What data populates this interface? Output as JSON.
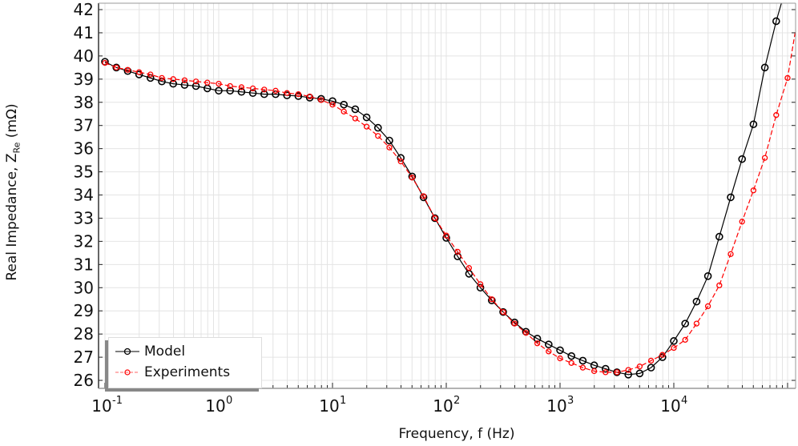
{
  "chart_data": {
    "type": "line",
    "title": "",
    "xlabel": "Frequency, f (Hz)",
    "ylabel": "Real Impedance, Z_Re (mΩ)",
    "ylabel_main": "Real Impedance, Z",
    "ylabel_sub": "Re",
    "ylabel_unit": " (mΩ)",
    "xscale": "log",
    "xlim": [
      0.09,
      140000
    ],
    "ylim": [
      25.6,
      42.2
    ],
    "grid": true,
    "legend_position": "lower left",
    "x_ticks": [
      "10^-1",
      "10^0",
      "10^1",
      "10^2",
      "10^3",
      "10^4"
    ],
    "y_ticks": [
      26,
      27,
      28,
      29,
      30,
      31,
      32,
      33,
      34,
      35,
      36,
      37,
      38,
      39,
      40,
      41,
      42
    ],
    "x_start_exp": -1,
    "points_per_decade": 10,
    "series": [
      {
        "name": "Model",
        "color": "#000000",
        "marker": "circle",
        "linestyle": "solid",
        "values": [
          39.75,
          39.5,
          39.35,
          39.2,
          39.05,
          38.9,
          38.8,
          38.75,
          38.7,
          38.6,
          38.5,
          38.5,
          38.45,
          38.4,
          38.35,
          38.35,
          38.3,
          38.27,
          38.2,
          38.15,
          38.05,
          37.9,
          37.7,
          37.35,
          36.9,
          36.35,
          35.6,
          34.8,
          33.9,
          33.0,
          32.15,
          31.35,
          30.6,
          30.0,
          29.45,
          28.95,
          28.5,
          28.1,
          27.8,
          27.55,
          27.3,
          27.05,
          26.85,
          26.65,
          26.5,
          26.35,
          26.25,
          26.3,
          26.55,
          27.0,
          27.7,
          28.45,
          29.4,
          30.5,
          32.2,
          33.9,
          35.55,
          37.05,
          39.5,
          41.5,
          43.2
        ]
      },
      {
        "name": "Experiments",
        "color": "#ff0000",
        "marker": "diamond",
        "linestyle": "dashed",
        "values": [
          39.7,
          39.5,
          39.4,
          39.3,
          39.2,
          39.05,
          39.0,
          38.95,
          38.9,
          38.85,
          38.8,
          38.7,
          38.65,
          38.6,
          38.55,
          38.5,
          38.4,
          38.35,
          38.25,
          38.1,
          37.9,
          37.6,
          37.3,
          36.95,
          36.55,
          36.05,
          35.45,
          34.75,
          33.95,
          33.0,
          32.25,
          31.55,
          30.85,
          30.15,
          29.5,
          28.95,
          28.45,
          28.05,
          27.6,
          27.25,
          26.95,
          26.75,
          26.55,
          26.4,
          26.35,
          26.35,
          26.45,
          26.6,
          26.85,
          27.1,
          27.4,
          27.75,
          28.45,
          29.2,
          30.1,
          31.45,
          32.85,
          34.2,
          35.6,
          37.45,
          39.05,
          42.0
        ]
      }
    ]
  },
  "legend": {
    "items": [
      {
        "label": "Model",
        "color": "#000000"
      },
      {
        "label": "Experiments",
        "color": "#ff0000"
      }
    ]
  }
}
